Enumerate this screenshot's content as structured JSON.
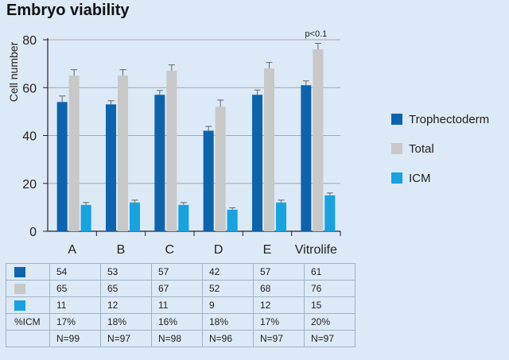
{
  "title": "Embryo viability",
  "colors": {
    "trophectoderm": "#0e63ad",
    "total": "#c8c8c8",
    "icm": "#17a2e0",
    "grid": "#a8a8a8",
    "axis": "#222222"
  },
  "chart_data": {
    "type": "bar",
    "categories": [
      "A",
      "B",
      "C",
      "D",
      "E",
      "Vitrolife"
    ],
    "series": [
      {
        "name": "Trophectoderm",
        "values": [
          54,
          53,
          57,
          42,
          57,
          61
        ],
        "errors": [
          2.5,
          1.5,
          1.8,
          1.8,
          2,
          1.8
        ],
        "color": "#0e63ad"
      },
      {
        "name": "Total",
        "values": [
          65,
          65,
          67,
          52,
          68,
          76
        ],
        "errors": [
          2.5,
          2.5,
          2.5,
          2.8,
          2.5,
          2.5
        ],
        "color": "#c8c8c8"
      },
      {
        "name": "ICM",
        "values": [
          11,
          12,
          11,
          9,
          12,
          15
        ],
        "errors": [
          1,
          1,
          1,
          0.8,
          1,
          1
        ],
        "color": "#17a2e0"
      }
    ],
    "ylabel": "Cell number",
    "ylim": [
      0,
      80
    ],
    "yticks": [
      0,
      20,
      40,
      60,
      80
    ],
    "grid": true,
    "legend_position": "right",
    "annotations": [
      {
        "category": "Vitrolife",
        "text": "p<0.1"
      }
    ]
  },
  "table": {
    "rows": [
      {
        "key_type": "swatch",
        "key_color": "#0e63ad",
        "cells": [
          "54",
          "53",
          "57",
          "42",
          "57",
          "61"
        ]
      },
      {
        "key_type": "swatch",
        "key_color": "#c8c8c8",
        "cells": [
          "65",
          "65",
          "67",
          "52",
          "68",
          "76"
        ]
      },
      {
        "key_type": "swatch",
        "key_color": "#17a2e0",
        "cells": [
          "11",
          "12",
          "11",
          "9",
          "12",
          "15"
        ]
      },
      {
        "key_type": "text",
        "key_label": "%ICM",
        "cells": [
          "17%",
          "18%",
          "16%",
          "18%",
          "17%",
          "20%"
        ]
      },
      {
        "key_type": "empty",
        "cells": [
          "N=99",
          "N=97",
          "N=98",
          "N=96",
          "N=97",
          "N=97"
        ]
      }
    ]
  }
}
